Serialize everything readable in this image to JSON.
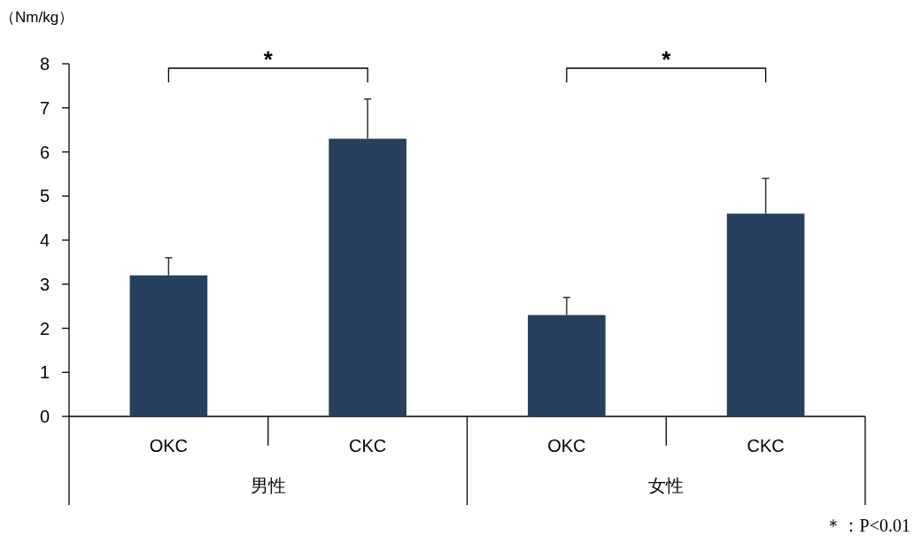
{
  "chart_data": {
    "type": "bar",
    "ylabel": "（Nm/kg）",
    "categories": [
      "OKC",
      "CKC",
      "OKC",
      "CKC"
    ],
    "values": [
      3.2,
      6.3,
      2.3,
      4.6
    ],
    "errors": [
      [
        3.2,
        3.6
      ],
      [
        6.3,
        7.2
      ],
      [
        2.3,
        2.7
      ],
      [
        4.6,
        5.4
      ]
    ],
    "color": "#27405f",
    "ylim": [
      0,
      8
    ],
    "yticks": [
      0,
      1,
      2,
      3,
      4,
      5,
      6,
      7,
      8
    ],
    "annotations": [
      "男性",
      "女性",
      "*",
      "*",
      "＊：P<0.01"
    ]
  }
}
